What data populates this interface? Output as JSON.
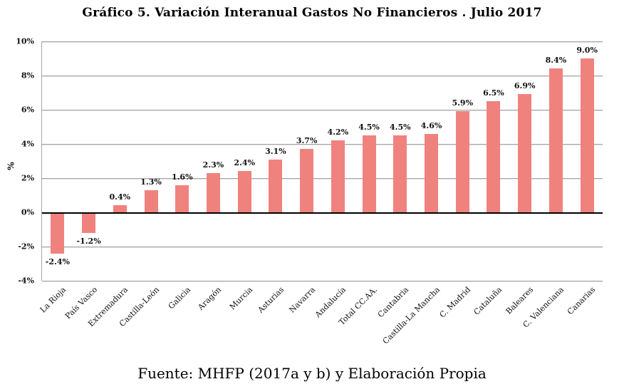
{
  "title": "Gráfico 5. Variación Interanual Gastos No Financieros . Julio 2017",
  "source": "Fuente: MHFP (2017a y b) y Elaboración Propia",
  "chart_data": {
    "type": "bar",
    "title": "Gráfico 5. Variación Interanual Gastos No Financieros . Julio 2017",
    "xlabel": "",
    "ylabel": "%",
    "ylim": [
      -4,
      10
    ],
    "grid": true,
    "legend": false,
    "bar_color": "#F0827E",
    "grid_color": "#A6A6A6",
    "zero_line_color": "#000000",
    "categories": [
      "La Rioja",
      "País Vasco",
      "Extremadura",
      "Castilla-León",
      "Galicia",
      "Aragón",
      "Murcia",
      "Asturias",
      "Navarra",
      "Andalucía",
      "Total CC.AA.",
      "Cantabria",
      "Castilla-La Mancha",
      "C. Madrid",
      "Cataluña",
      "Baleares",
      "C. Valenciana",
      "Canarias"
    ],
    "values": [
      -2.4,
      -1.2,
      0.4,
      1.3,
      1.6,
      2.3,
      2.4,
      3.1,
      3.7,
      4.2,
      4.5,
      4.5,
      4.6,
      5.9,
      6.5,
      6.9,
      8.4,
      9.0
    ],
    "value_labels": [
      "-2.4%",
      "-1.2%",
      "0.4%",
      "1.3%",
      "1.6%",
      "2.3%",
      "2.4%",
      "3.1%",
      "3.7%",
      "4.2%",
      "4.5%",
      "4.5%",
      "4.6%",
      "5.9%",
      "6.5%",
      "6.9%",
      "8.4%",
      "9.0%"
    ],
    "y_ticks": [
      {
        "value": 10,
        "label": "10%"
      },
      {
        "value": 8,
        "label": "8%"
      },
      {
        "value": 6,
        "label": "6%"
      },
      {
        "value": 4,
        "label": "4%"
      },
      {
        "value": 2,
        "label": "2%"
      },
      {
        "value": 0,
        "label": "0%"
      },
      {
        "value": -2,
        "label": "-2%"
      },
      {
        "value": -4,
        "label": "-4%"
      }
    ]
  }
}
